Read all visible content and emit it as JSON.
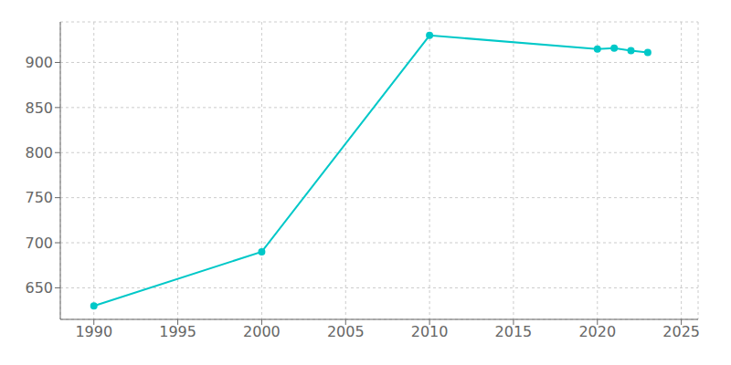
{
  "chart_data": {
    "type": "line",
    "x": [
      1990,
      2000,
      2010,
      2020,
      2021,
      2022,
      2023
    ],
    "values": [
      630,
      690,
      930,
      915,
      916,
      913,
      911
    ],
    "color": "#00C8C8",
    "marker": "o",
    "xlim": [
      1988,
      2026
    ],
    "ylim": [
      615,
      945
    ],
    "xticks": [
      1990,
      1995,
      2000,
      2005,
      2010,
      2015,
      2020,
      2025
    ],
    "yticks": [
      650,
      700,
      750,
      800,
      850,
      900
    ],
    "grid": true
  }
}
